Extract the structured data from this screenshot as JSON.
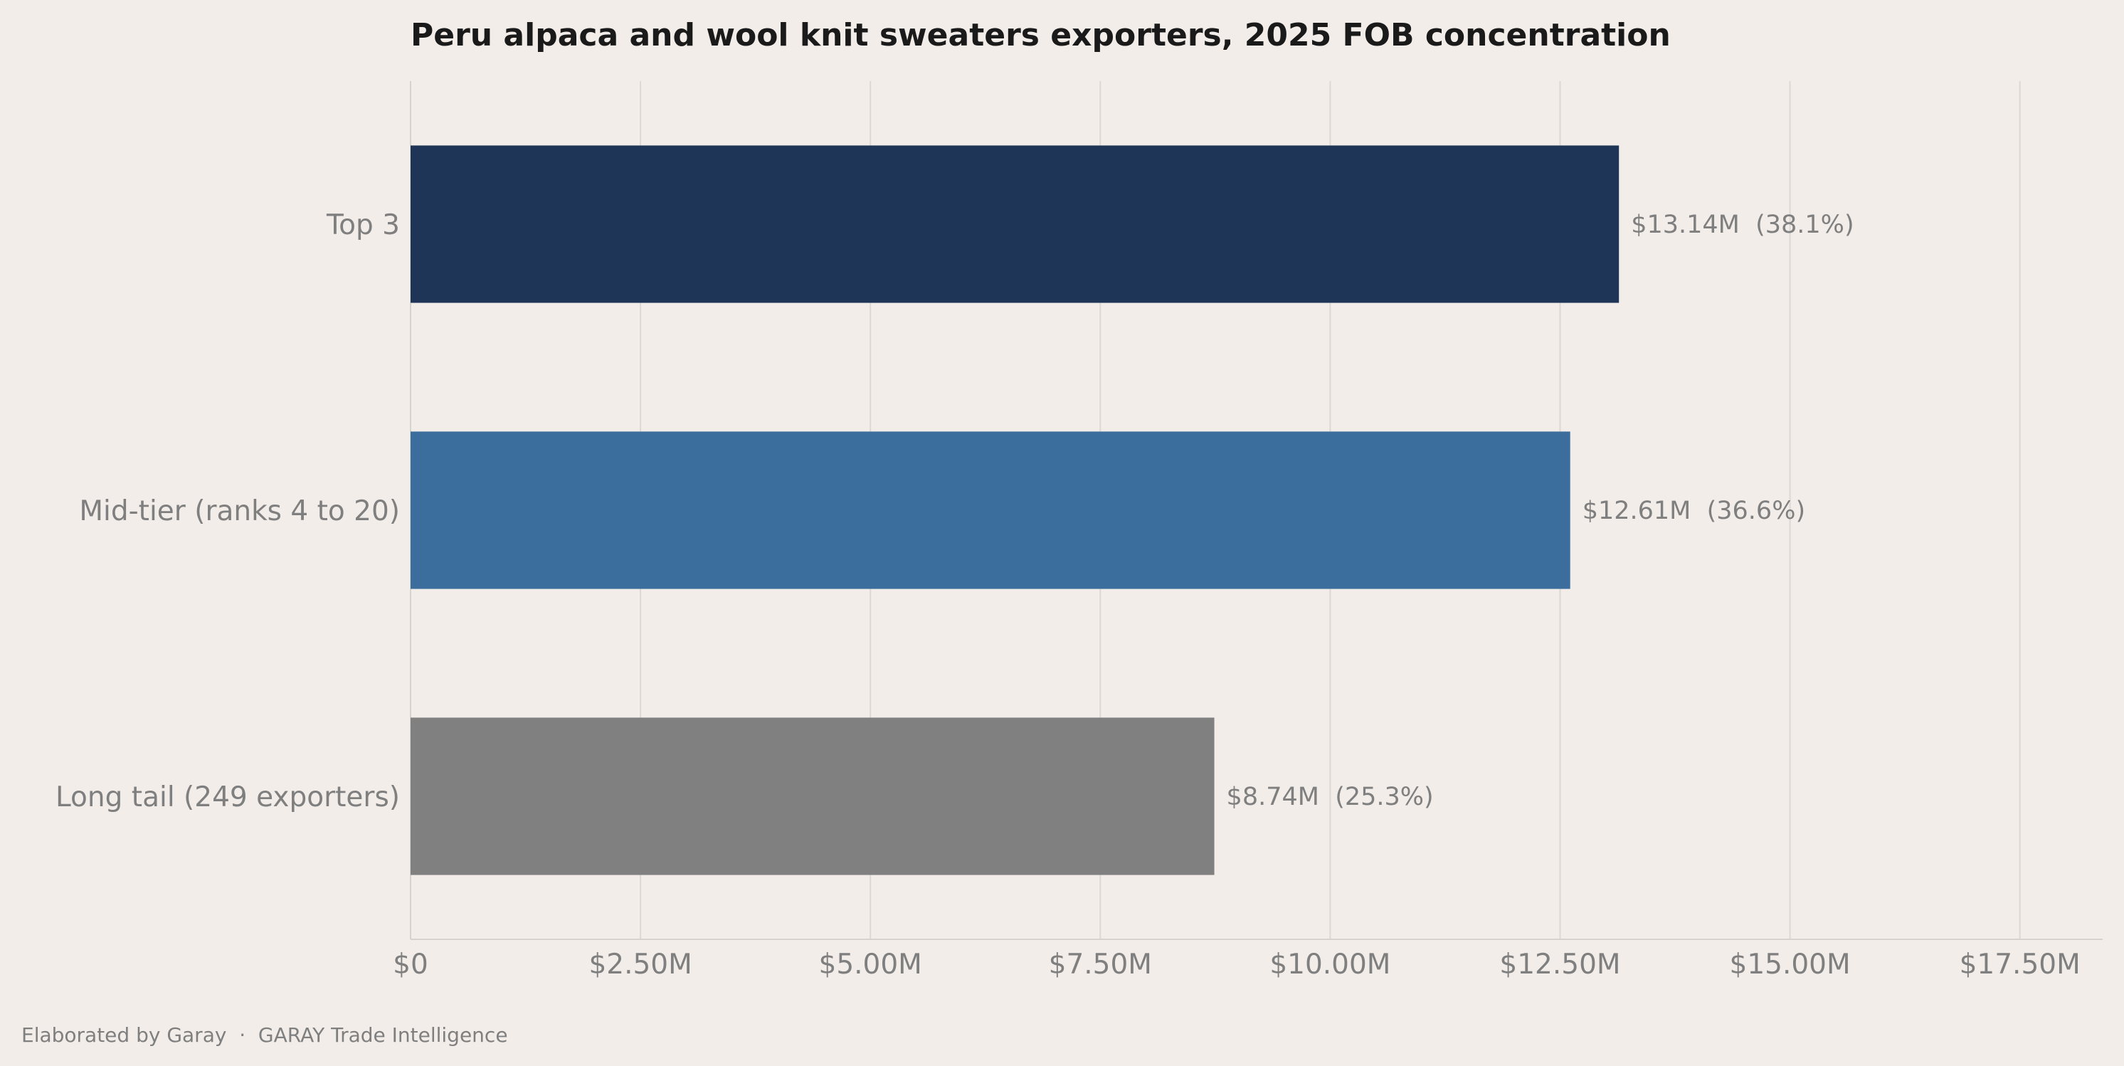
{
  "chart_data": {
    "type": "bar",
    "orientation": "horizontal",
    "title": "Peru alpaca and wool knit sweaters exporters, 2025 FOB concentration",
    "xlabel": "",
    "ylabel": "",
    "categories": [
      "Top 3",
      "Mid-tier (ranks 4 to 20)",
      "Long tail (249 exporters)"
    ],
    "values": [
      13.14,
      12.61,
      8.74
    ],
    "data_labels": [
      "$13.14M  (38.1%)",
      "$12.61M  (36.6%)",
      "$8.74M  (25.3%)"
    ],
    "colors": [
      "#1e3557",
      "#3b6e9c",
      "#808080"
    ],
    "xlim": [
      0,
      18.4
    ],
    "xticks": [
      0,
      2.5,
      5,
      7.5,
      10,
      12.5,
      15,
      17.5
    ],
    "xtick_labels": [
      "$0",
      "$2.50M",
      "$5.00M",
      "$7.50M",
      "$10.00M",
      "$12.50M",
      "$15.00M",
      "$17.50M"
    ],
    "grid": "vertical",
    "legend": "none"
  },
  "footer": "Elaborated by Garay  ·  GARAY Trade Intelligence"
}
